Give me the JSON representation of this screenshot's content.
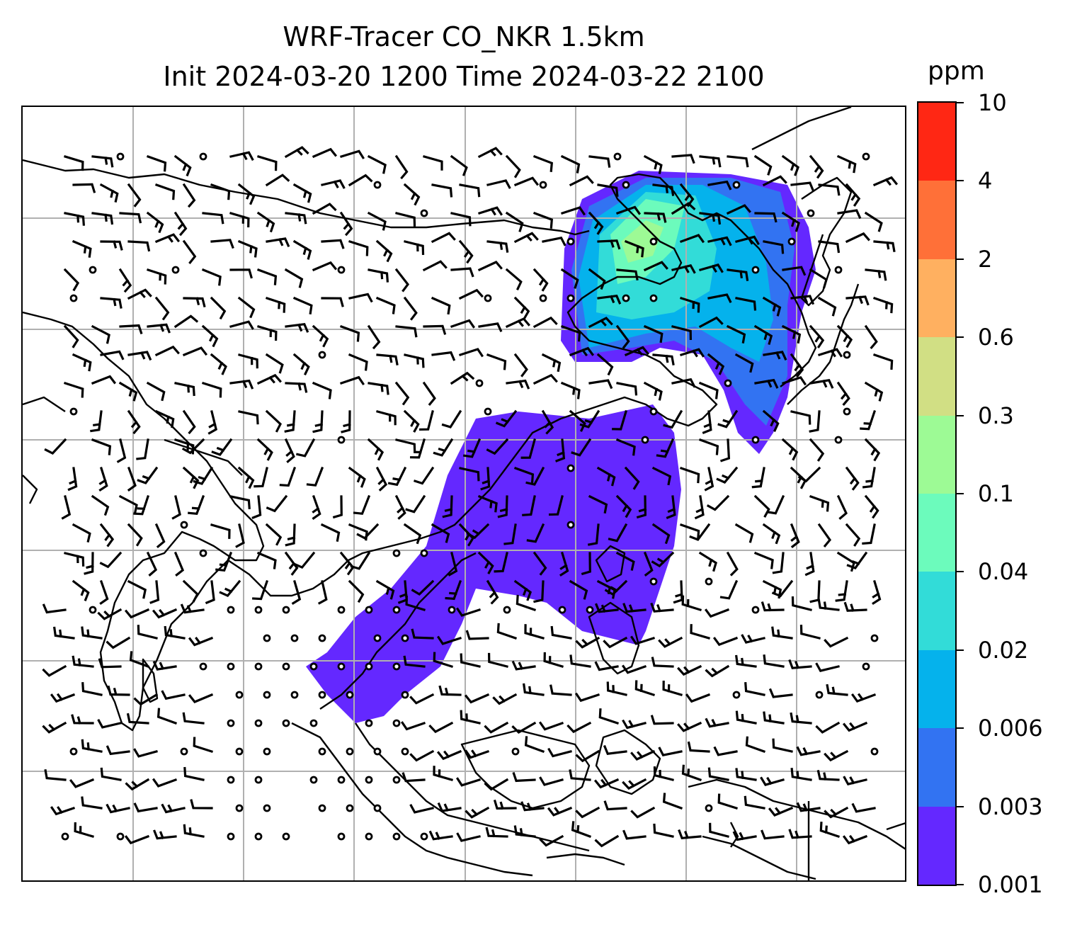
{
  "title": {
    "line1": "WRF-Tracer CO_NKR 1.5km",
    "line2": "Init 2024-03-20 1200 Time 2024-03-22 2100"
  },
  "colorbar": {
    "unit": "ppm",
    "labels": [
      "0.001",
      "0.003",
      "0.006",
      "0.02",
      "0.04",
      "0.1",
      "0.3",
      "0.6",
      "2",
      "4",
      "10"
    ],
    "colors": [
      "#6428ff",
      "#3273f2",
      "#05b2ec",
      "#32dcd8",
      "#6cfbbc",
      "#9dfa95",
      "#d1df84",
      "#ffb060",
      "#ff7038",
      "#ff2714"
    ]
  },
  "map": {
    "projection_grid": true,
    "coastline_color": "#000000",
    "grid_color": "#b0b0b0",
    "plume_levels": [
      "0.001",
      "0.003",
      "0.006",
      "0.02",
      "0.04",
      "0.1"
    ]
  }
}
